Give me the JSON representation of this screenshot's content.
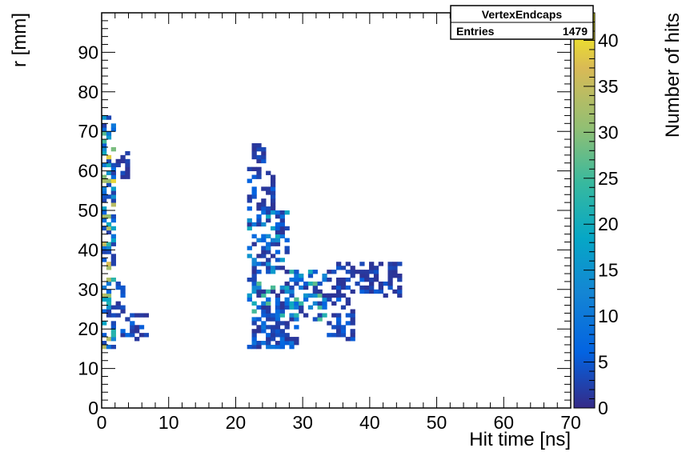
{
  "chart_data": {
    "type": "heatmap",
    "title": "",
    "xlabel": "Hit time [ns]",
    "ylabel": "r [mm]",
    "zlabel": "Number of hits",
    "xlim": [
      0,
      70
    ],
    "ylim": [
      0,
      100
    ],
    "zlim": [
      0,
      43
    ],
    "bin_width_x": 0.7,
    "bin_width_y": 1.0,
    "x_ticks": [
      0,
      10,
      20,
      30,
      40,
      50,
      60,
      70
    ],
    "y_ticks": [
      0,
      10,
      20,
      30,
      40,
      50,
      60,
      70,
      80,
      90
    ],
    "z_ticks": [
      0,
      5,
      10,
      15,
      20,
      25,
      30,
      35,
      40
    ],
    "x_tick_labels": [
      "0",
      "10",
      "20",
      "30",
      "40",
      "50",
      "60",
      "70"
    ],
    "y_tick_labels": [
      "0",
      "10",
      "20",
      "30",
      "40",
      "50",
      "60",
      "70",
      "80",
      "90"
    ],
    "z_tick_labels": [
      "0",
      "5",
      "10",
      "15",
      "20",
      "25",
      "30",
      "35",
      "40"
    ],
    "colormap": "parula",
    "stats_box": {
      "name": "VertexEndcaps",
      "entries_label": "Entries",
      "entries_value": "1479"
    },
    "regions": [
      {
        "x": [
          0.0,
          2.1
        ],
        "y": [
          15,
          74
        ],
        "z": [
          2,
          40
        ]
      },
      {
        "x": [
          2.1,
          7.0
        ],
        "y": [
          17,
          25
        ],
        "z": [
          1,
          8
        ]
      },
      {
        "x": [
          2.1,
          3.5
        ],
        "y": [
          25,
          32
        ],
        "z": [
          1,
          6
        ]
      },
      {
        "x": [
          2.1,
          4.2
        ],
        "y": [
          58,
          65
        ],
        "z": [
          1,
          4
        ]
      },
      {
        "x": [
          21.7,
          24.5
        ],
        "y": [
          60,
          67
        ],
        "z": [
          1,
          5
        ]
      },
      {
        "x": [
          21.7,
          25.9
        ],
        "y": [
          50,
          60
        ],
        "z": [
          1,
          8
        ]
      },
      {
        "x": [
          21.7,
          28.0
        ],
        "y": [
          35,
          50
        ],
        "z": [
          1,
          20
        ]
      },
      {
        "x": [
          21.7,
          33.6
        ],
        "y": [
          22,
          35
        ],
        "z": [
          1,
          28
        ]
      },
      {
        "x": [
          21.7,
          29.4
        ],
        "y": [
          15,
          22
        ],
        "z": [
          1,
          10
        ]
      },
      {
        "x": [
          33.6,
          37.8
        ],
        "y": [
          17,
          30
        ],
        "z": [
          1,
          7
        ]
      },
      {
        "x": [
          33.6,
          44.8
        ],
        "y": [
          28,
          37
        ],
        "z": [
          1,
          6
        ]
      }
    ]
  }
}
